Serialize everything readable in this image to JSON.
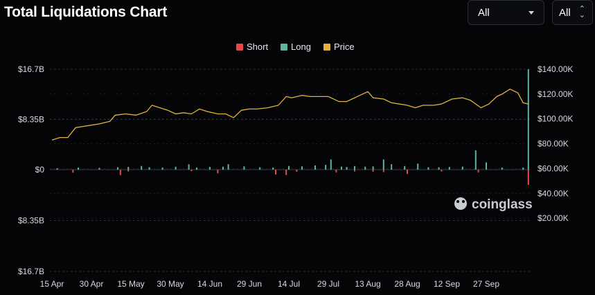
{
  "header": {
    "title": "Total Liquidations Chart",
    "interval_select": "All",
    "range_select": "All"
  },
  "watermark": "coinglass",
  "colors": {
    "short": "#e5484d",
    "long": "#5fb3a1",
    "price": "#e2b33c",
    "background": "#050507",
    "grid": "#2a2c33",
    "axis_text": "#d7d9de"
  },
  "chart_data": {
    "type": "bar",
    "title": "Total Liquidations Chart",
    "legend": {
      "placement": "top-center",
      "entries": [
        "Short",
        "Long",
        "Price"
      ]
    },
    "x_tick_labels": [
      "15 Apr",
      "30 Apr",
      "15 May",
      "30 May",
      "14 Jun",
      "29 Jun",
      "14 Jul",
      "29 Jul",
      "13 Aug",
      "28 Aug",
      "12 Sep",
      "27 Sep"
    ],
    "left_axis": {
      "tick_labels": [
        "$16.7B",
        "$8.35B",
        "$0",
        "$8.35B",
        "$16.7B"
      ],
      "range_billion_usd": [
        -16.7,
        16.7
      ]
    },
    "right_axis": {
      "tick_labels": [
        "$140.00K",
        "$120.00K",
        "$100.00K",
        "$80.00K",
        "$60.00K",
        "$40.00K",
        "$20.00K"
      ],
      "range_thousand_usd": [
        0,
        140
      ]
    },
    "grid": true,
    "series": [
      {
        "name": "Long",
        "kind": "bar",
        "unit": "billion USD",
        "points": [
          [
            "04-17",
            0.25
          ],
          [
            "04-25",
            0.35
          ],
          [
            "05-03",
            0.3
          ],
          [
            "05-10",
            0.4
          ],
          [
            "05-14",
            0.45
          ],
          [
            "05-19",
            0.6
          ],
          [
            "05-22",
            0.4
          ],
          [
            "05-27",
            0.35
          ],
          [
            "06-01",
            0.5
          ],
          [
            "06-06",
            0.9
          ],
          [
            "06-09",
            0.35
          ],
          [
            "06-14",
            0.45
          ],
          [
            "06-19",
            0.5
          ],
          [
            "06-21",
            0.9
          ],
          [
            "06-27",
            0.55
          ],
          [
            "07-03",
            0.4
          ],
          [
            "07-08",
            0.35
          ],
          [
            "07-14",
            0.6
          ],
          [
            "07-19",
            0.55
          ],
          [
            "07-24",
            0.7
          ],
          [
            "07-28",
            0.8
          ],
          [
            "07-30",
            1.7
          ],
          [
            "08-03",
            0.5
          ],
          [
            "08-05",
            0.45
          ],
          [
            "08-08",
            0.6
          ],
          [
            "08-12",
            0.5
          ],
          [
            "08-15",
            0.55
          ],
          [
            "08-19",
            1.7
          ],
          [
            "08-22",
            0.9
          ],
          [
            "08-27",
            0.6
          ],
          [
            "09-01",
            1.0
          ],
          [
            "09-05",
            0.4
          ],
          [
            "09-09",
            0.4
          ],
          [
            "09-13",
            0.45
          ],
          [
            "09-18",
            0.5
          ],
          [
            "09-23",
            3.2
          ],
          [
            "09-27",
            1.2
          ],
          [
            "10-03",
            0.35
          ],
          [
            "10-11",
            0.35
          ],
          [
            "10-13",
            16.7
          ]
        ]
      },
      {
        "name": "Short",
        "kind": "bar",
        "unit": "billion USD",
        "points": [
          [
            "04-23",
            0.5
          ],
          [
            "05-11",
            0.9
          ],
          [
            "05-14",
            0.3
          ],
          [
            "06-07",
            0.25
          ],
          [
            "06-17",
            0.6
          ],
          [
            "07-09",
            0.8
          ],
          [
            "07-13",
            0.9
          ],
          [
            "07-17",
            0.35
          ],
          [
            "08-01",
            0.45
          ],
          [
            "08-08",
            0.3
          ],
          [
            "08-15",
            0.35
          ],
          [
            "08-19",
            0.4
          ],
          [
            "08-28",
            0.7
          ],
          [
            "09-10",
            0.3
          ],
          [
            "09-24",
            0.45
          ],
          [
            "10-13",
            2.5
          ]
        ]
      },
      {
        "name": "Price",
        "kind": "line",
        "unit": "thousand USD",
        "points": [
          [
            "04-15",
            83
          ],
          [
            "04-18",
            85
          ],
          [
            "04-21",
            85
          ],
          [
            "04-24",
            93
          ],
          [
            "04-27",
            94
          ],
          [
            "04-30",
            95
          ],
          [
            "05-03",
            96
          ],
          [
            "05-07",
            98
          ],
          [
            "05-09",
            103
          ],
          [
            "05-13",
            104
          ],
          [
            "05-17",
            103
          ],
          [
            "05-21",
            106
          ],
          [
            "05-23",
            111
          ],
          [
            "05-26",
            109
          ],
          [
            "05-29",
            107
          ],
          [
            "06-01",
            104
          ],
          [
            "06-04",
            105
          ],
          [
            "06-07",
            104
          ],
          [
            "06-10",
            108
          ],
          [
            "06-13",
            106
          ],
          [
            "06-17",
            104
          ],
          [
            "06-20",
            104
          ],
          [
            "06-23",
            101
          ],
          [
            "06-26",
            107
          ],
          [
            "06-29",
            108
          ],
          [
            "07-02",
            108
          ],
          [
            "07-06",
            109
          ],
          [
            "07-10",
            111
          ],
          [
            "07-13",
            118
          ],
          [
            "07-15",
            117
          ],
          [
            "07-19",
            119
          ],
          [
            "07-22",
            118
          ],
          [
            "07-25",
            118
          ],
          [
            "07-29",
            118
          ],
          [
            "08-02",
            114
          ],
          [
            "08-05",
            114
          ],
          [
            "08-09",
            118
          ],
          [
            "08-13",
            122
          ],
          [
            "08-15",
            117
          ],
          [
            "08-19",
            116
          ],
          [
            "08-22",
            113
          ],
          [
            "08-25",
            112
          ],
          [
            "08-28",
            111
          ],
          [
            "08-31",
            109
          ],
          [
            "09-03",
            111
          ],
          [
            "09-07",
            111
          ],
          [
            "09-10",
            112
          ],
          [
            "09-14",
            116
          ],
          [
            "09-18",
            117
          ],
          [
            "09-21",
            115
          ],
          [
            "09-25",
            109
          ],
          [
            "09-28",
            112
          ],
          [
            "10-01",
            118
          ],
          [
            "10-03",
            120
          ],
          [
            "10-06",
            124
          ],
          [
            "10-09",
            121
          ],
          [
            "10-11",
            113
          ],
          [
            "10-13",
            112
          ]
        ]
      }
    ]
  }
}
